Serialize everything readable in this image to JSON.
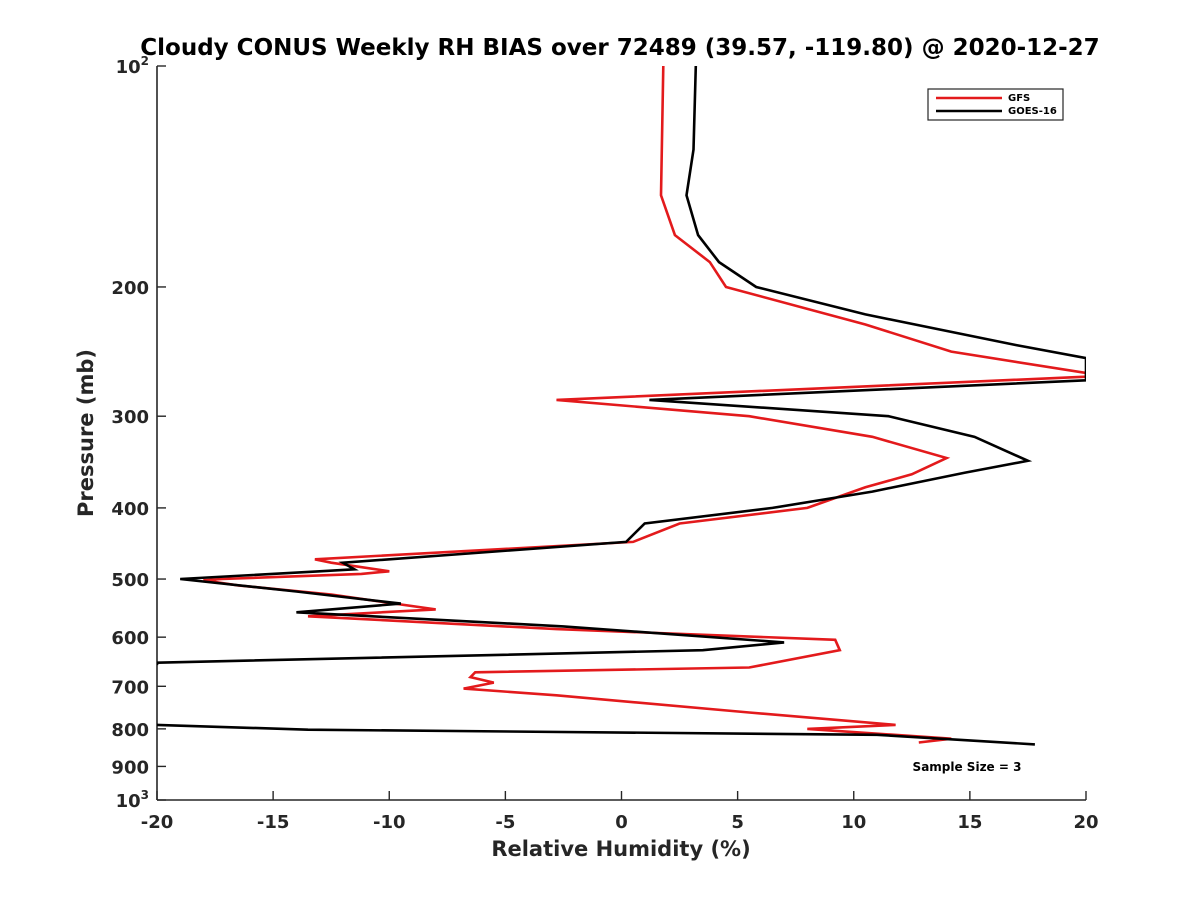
{
  "chart_data": {
    "type": "line",
    "title": "Cloudy CONUS Weekly RH BIAS over 72489 (39.57, -119.80) @ 2020-12-27",
    "xlabel": "Relative Humidity (%)",
    "ylabel": "Pressure (mb)",
    "xlim": [
      -20,
      20
    ],
    "ylim": [
      100,
      1000
    ],
    "y_scale": "log",
    "y_reversed": true,
    "grid": false,
    "legend_position": "top-right",
    "x_ticks": [
      -20,
      -15,
      -10,
      -5,
      0,
      5,
      10,
      15,
      20
    ],
    "x_tick_labels": [
      "-20",
      "-15",
      "-10",
      "-5",
      "0",
      "5",
      "10",
      "15",
      "20"
    ],
    "y_ticks": [
      100,
      200,
      300,
      400,
      500,
      600,
      700,
      800,
      900,
      1000
    ],
    "y_tick_labels": [
      {
        "base": "10",
        "sup": "2"
      },
      {
        "base": "200"
      },
      {
        "base": "300"
      },
      {
        "base": "400"
      },
      {
        "base": "500"
      },
      {
        "base": "600"
      },
      {
        "base": "700"
      },
      {
        "base": "800"
      },
      {
        "base": "900"
      },
      {
        "base": "10",
        "sup": "3"
      }
    ],
    "annotation": "Sample Size = 3",
    "series": [
      {
        "name": "GFS",
        "color": "#e31a1c",
        "points": [
          [
            1.8,
            100
          ],
          [
            1.7,
            150
          ],
          [
            2.3,
            170
          ],
          [
            3.8,
            185
          ],
          [
            4.5,
            200
          ],
          [
            10.5,
            225
          ],
          [
            14.2,
            245
          ],
          [
            20,
            262
          ],
          [
            20,
            265
          ],
          [
            -2.8,
            285
          ],
          [
            5.5,
            300
          ],
          [
            10.8,
            320
          ],
          [
            14,
            342
          ],
          [
            12.5,
            360
          ],
          [
            10.5,
            375
          ],
          [
            8,
            400
          ],
          [
            2.5,
            420
          ],
          [
            0.5,
            445
          ],
          [
            -13.2,
            470
          ],
          [
            -12.5,
            475
          ],
          [
            -10,
            488
          ],
          [
            -11.2,
            492
          ],
          [
            -17.2,
            500
          ],
          [
            -18,
            502
          ],
          [
            -16.5,
            510
          ],
          [
            -12.5,
            525
          ],
          [
            -8,
            550
          ],
          [
            -13.5,
            562
          ],
          [
            -2.8,
            585
          ],
          [
            9.2,
            605
          ],
          [
            9.4,
            625
          ],
          [
            5.5,
            660
          ],
          [
            -6.3,
            670
          ],
          [
            -6.5,
            680
          ],
          [
            -5.5,
            692
          ],
          [
            -6.8,
            705
          ],
          [
            -2.8,
            720
          ],
          [
            5.5,
            760
          ],
          [
            11.8,
            790
          ],
          [
            8,
            800
          ],
          [
            14.2,
            825
          ],
          [
            12.8,
            835
          ]
        ]
      },
      {
        "name": "GOES-16",
        "color": "#000000",
        "points": [
          [
            3.2,
            100
          ],
          [
            3.1,
            130
          ],
          [
            2.8,
            150
          ],
          [
            3.3,
            170
          ],
          [
            4.2,
            185
          ],
          [
            5.8,
            200
          ],
          [
            10.5,
            218
          ],
          [
            17,
            240
          ],
          [
            20,
            250
          ],
          [
            20,
            268
          ],
          [
            1.2,
            285
          ],
          [
            11.5,
            300
          ],
          [
            15.2,
            320
          ],
          [
            17.5,
            345
          ],
          [
            14.8,
            358
          ],
          [
            10.8,
            380
          ],
          [
            6.5,
            400
          ],
          [
            1,
            420
          ],
          [
            0.2,
            445
          ],
          [
            -12,
            475
          ],
          [
            -11.5,
            485
          ],
          [
            -13,
            488
          ],
          [
            -19,
            500
          ],
          [
            -14,
            520
          ],
          [
            -9.5,
            540
          ],
          [
            -14,
            555
          ],
          [
            -2.5,
            580
          ],
          [
            7,
            610
          ],
          [
            3.5,
            625
          ],
          [
            -20,
            650
          ],
          [
            -20,
            655
          ]
        ],
        "lower_points": [
          [
            -20,
            790
          ],
          [
            -13.5,
            802
          ],
          [
            11,
            815
          ],
          [
            17.8,
            840
          ]
        ]
      }
    ]
  }
}
